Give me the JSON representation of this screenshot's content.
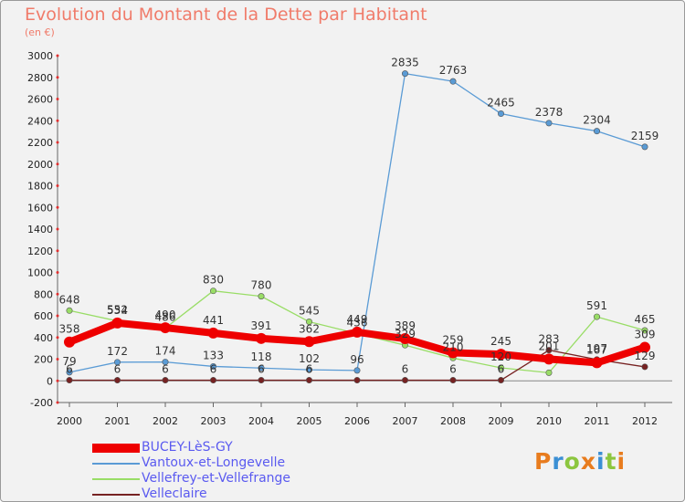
{
  "title": "Evolution du Montant de la Dette par Habitant",
  "subtitle": "(en €)",
  "brand": {
    "text": "Proxiti",
    "colors": [
      "#e87c1e",
      "#3b8fd4",
      "#8cc63f",
      "#e87c1e",
      "#3b8fd4",
      "#8cc63f",
      "#e87c1e"
    ]
  },
  "chart_data": {
    "type": "line",
    "title": "Evolution du Montant de la Dette par Habitant",
    "ylabel": "(en €)",
    "xlabel": "",
    "categories": [
      "2000",
      "2001",
      "2002",
      "2003",
      "2004",
      "2005",
      "2006",
      "2007",
      "2008",
      "2009",
      "2010",
      "2011",
      "2012"
    ],
    "ylim": [
      -200,
      3000
    ],
    "yticks": [
      -200,
      0,
      200,
      400,
      600,
      800,
      1000,
      1200,
      1400,
      1600,
      1800,
      2000,
      2200,
      2400,
      2600,
      2800,
      3000
    ],
    "grid": false,
    "legend_position": "bottom-left",
    "series": [
      {
        "name": "Vellefrey-et-Vellefrange",
        "color": "#99dd66",
        "values": [
          648,
          552,
          486,
          830,
          780,
          545,
          436,
          329,
          210,
          120,
          75,
          591,
          465
        ],
        "labels": [
          "648",
          "552",
          "486",
          "830",
          "780",
          "545",
          "436",
          "329",
          "210",
          "120",
          "",
          "591",
          "465"
        ]
      },
      {
        "name": "Vantoux-et-Longevelle",
        "color": "#5a9bd5",
        "values": [
          79,
          172,
          174,
          133,
          118,
          102,
          96,
          2835,
          2763,
          2465,
          2378,
          2304,
          2159
        ],
        "labels": [
          "79",
          "172",
          "174",
          "133",
          "118",
          "102",
          "96",
          "2835",
          "2763",
          "2465",
          "2378",
          "2304",
          "2159"
        ]
      },
      {
        "name": "Velleclaire",
        "color": "#772222",
        "values": [
          6,
          6,
          6,
          6,
          6,
          6,
          6,
          6,
          6,
          6,
          283,
          197,
          129
        ],
        "labels": [
          "6",
          "6",
          "6",
          "6",
          "6",
          "6",
          "",
          "6",
          "6",
          "6",
          "283",
          "197",
          "129"
        ]
      },
      {
        "name": "BUCEY-LèS-GY",
        "color": "#ee0000",
        "values": [
          358,
          534,
          490,
          441,
          391,
          362,
          449,
          389,
          259,
          245,
          201,
          167,
          309
        ],
        "labels": [
          "358",
          "534",
          "490",
          "441",
          "391",
          "362",
          "449",
          "389",
          "259",
          "245",
          "201",
          "167",
          "309"
        ]
      }
    ],
    "legend": [
      "BUCEY-LèS-GY",
      "Vantoux-et-Longevelle",
      "Vellefrey-et-Vellefrange",
      "Velleclaire"
    ]
  }
}
